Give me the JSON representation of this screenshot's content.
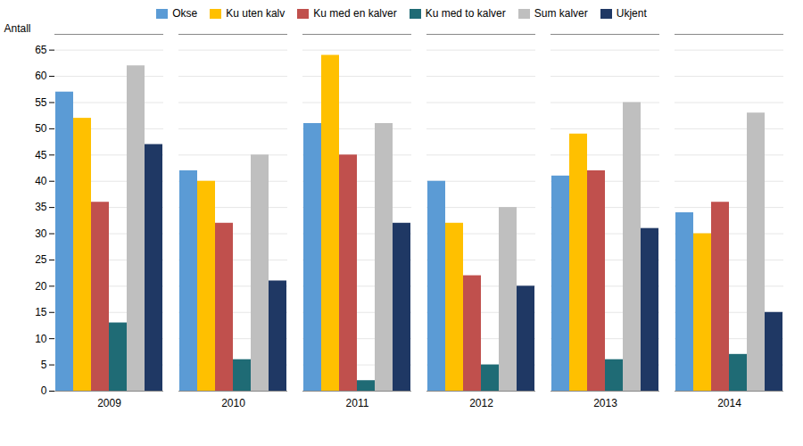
{
  "chart_data": {
    "type": "bar",
    "categories": [
      "2009",
      "2010",
      "2011",
      "2012",
      "2013",
      "2014"
    ],
    "series": [
      {
        "name": "Okse",
        "color": "#5B9BD5",
        "values": [
          57,
          42,
          51,
          40,
          41,
          34
        ]
      },
      {
        "name": "Ku uten kalv",
        "color": "#FFC000",
        "values": [
          52,
          40,
          64,
          32,
          49,
          30
        ]
      },
      {
        "name": "Ku med en kalver",
        "color": "#C0504D",
        "values": [
          36,
          32,
          45,
          22,
          42,
          36
        ]
      },
      {
        "name": "Ku med to kalver",
        "color": "#1F6B75",
        "values": [
          13,
          6,
          2,
          5,
          6,
          7
        ]
      },
      {
        "name": "Sum kalver",
        "color": "#BFBFBF",
        "values": [
          62,
          45,
          51,
          35,
          55,
          53
        ]
      },
      {
        "name": "Ukjent",
        "color": "#1F3864",
        "values": [
          47,
          21,
          32,
          20,
          31,
          15
        ]
      }
    ],
    "ylabel": "Antall",
    "ylim": [
      0,
      68
    ],
    "yticks": [
      0,
      5,
      10,
      15,
      20,
      25,
      30,
      35,
      40,
      45,
      50,
      55,
      60,
      65
    ],
    "grid": true,
    "legend": "top"
  }
}
